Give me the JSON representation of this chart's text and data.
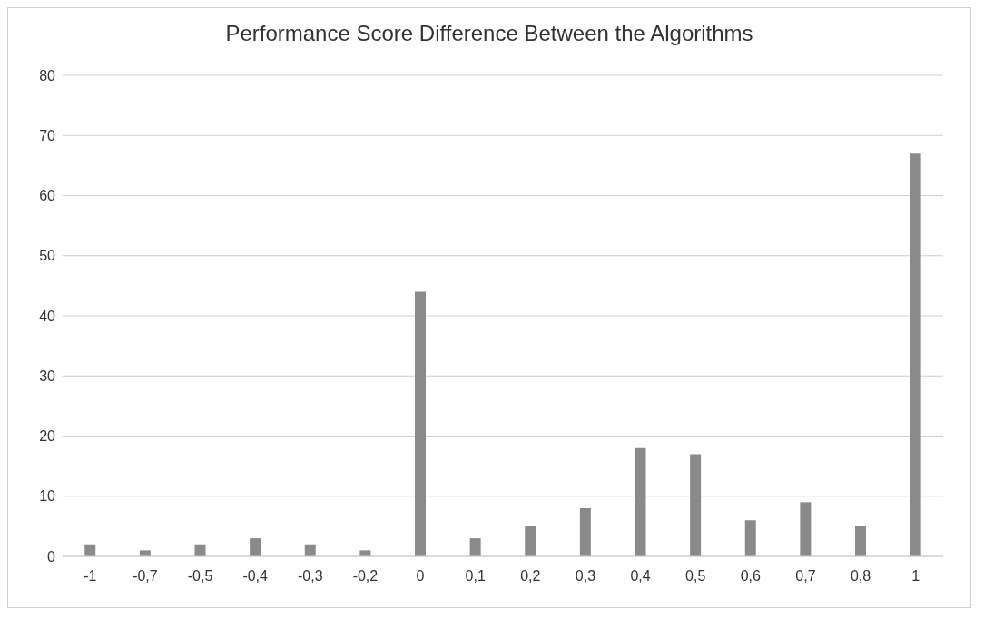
{
  "chart_data": {
    "type": "bar",
    "title": "Performance Score Difference Between the Algorithms",
    "categories": [
      "-1",
      "-0,7",
      "-0,5",
      "-0,4",
      "-0,3",
      "-0,2",
      "0",
      "0,1",
      "0,2",
      "0,3",
      "0,4",
      "0,5",
      "0,6",
      "0,7",
      "0,8",
      "1"
    ],
    "values": [
      2,
      1,
      2,
      3,
      2,
      1,
      44,
      3,
      5,
      8,
      18,
      17,
      6,
      9,
      5,
      67
    ],
    "color": "#8a8a8a",
    "ylim": [
      0,
      80
    ],
    "yticks": [
      0,
      10,
      20,
      30,
      40,
      50,
      60,
      70,
      80
    ],
    "grid": "y"
  }
}
